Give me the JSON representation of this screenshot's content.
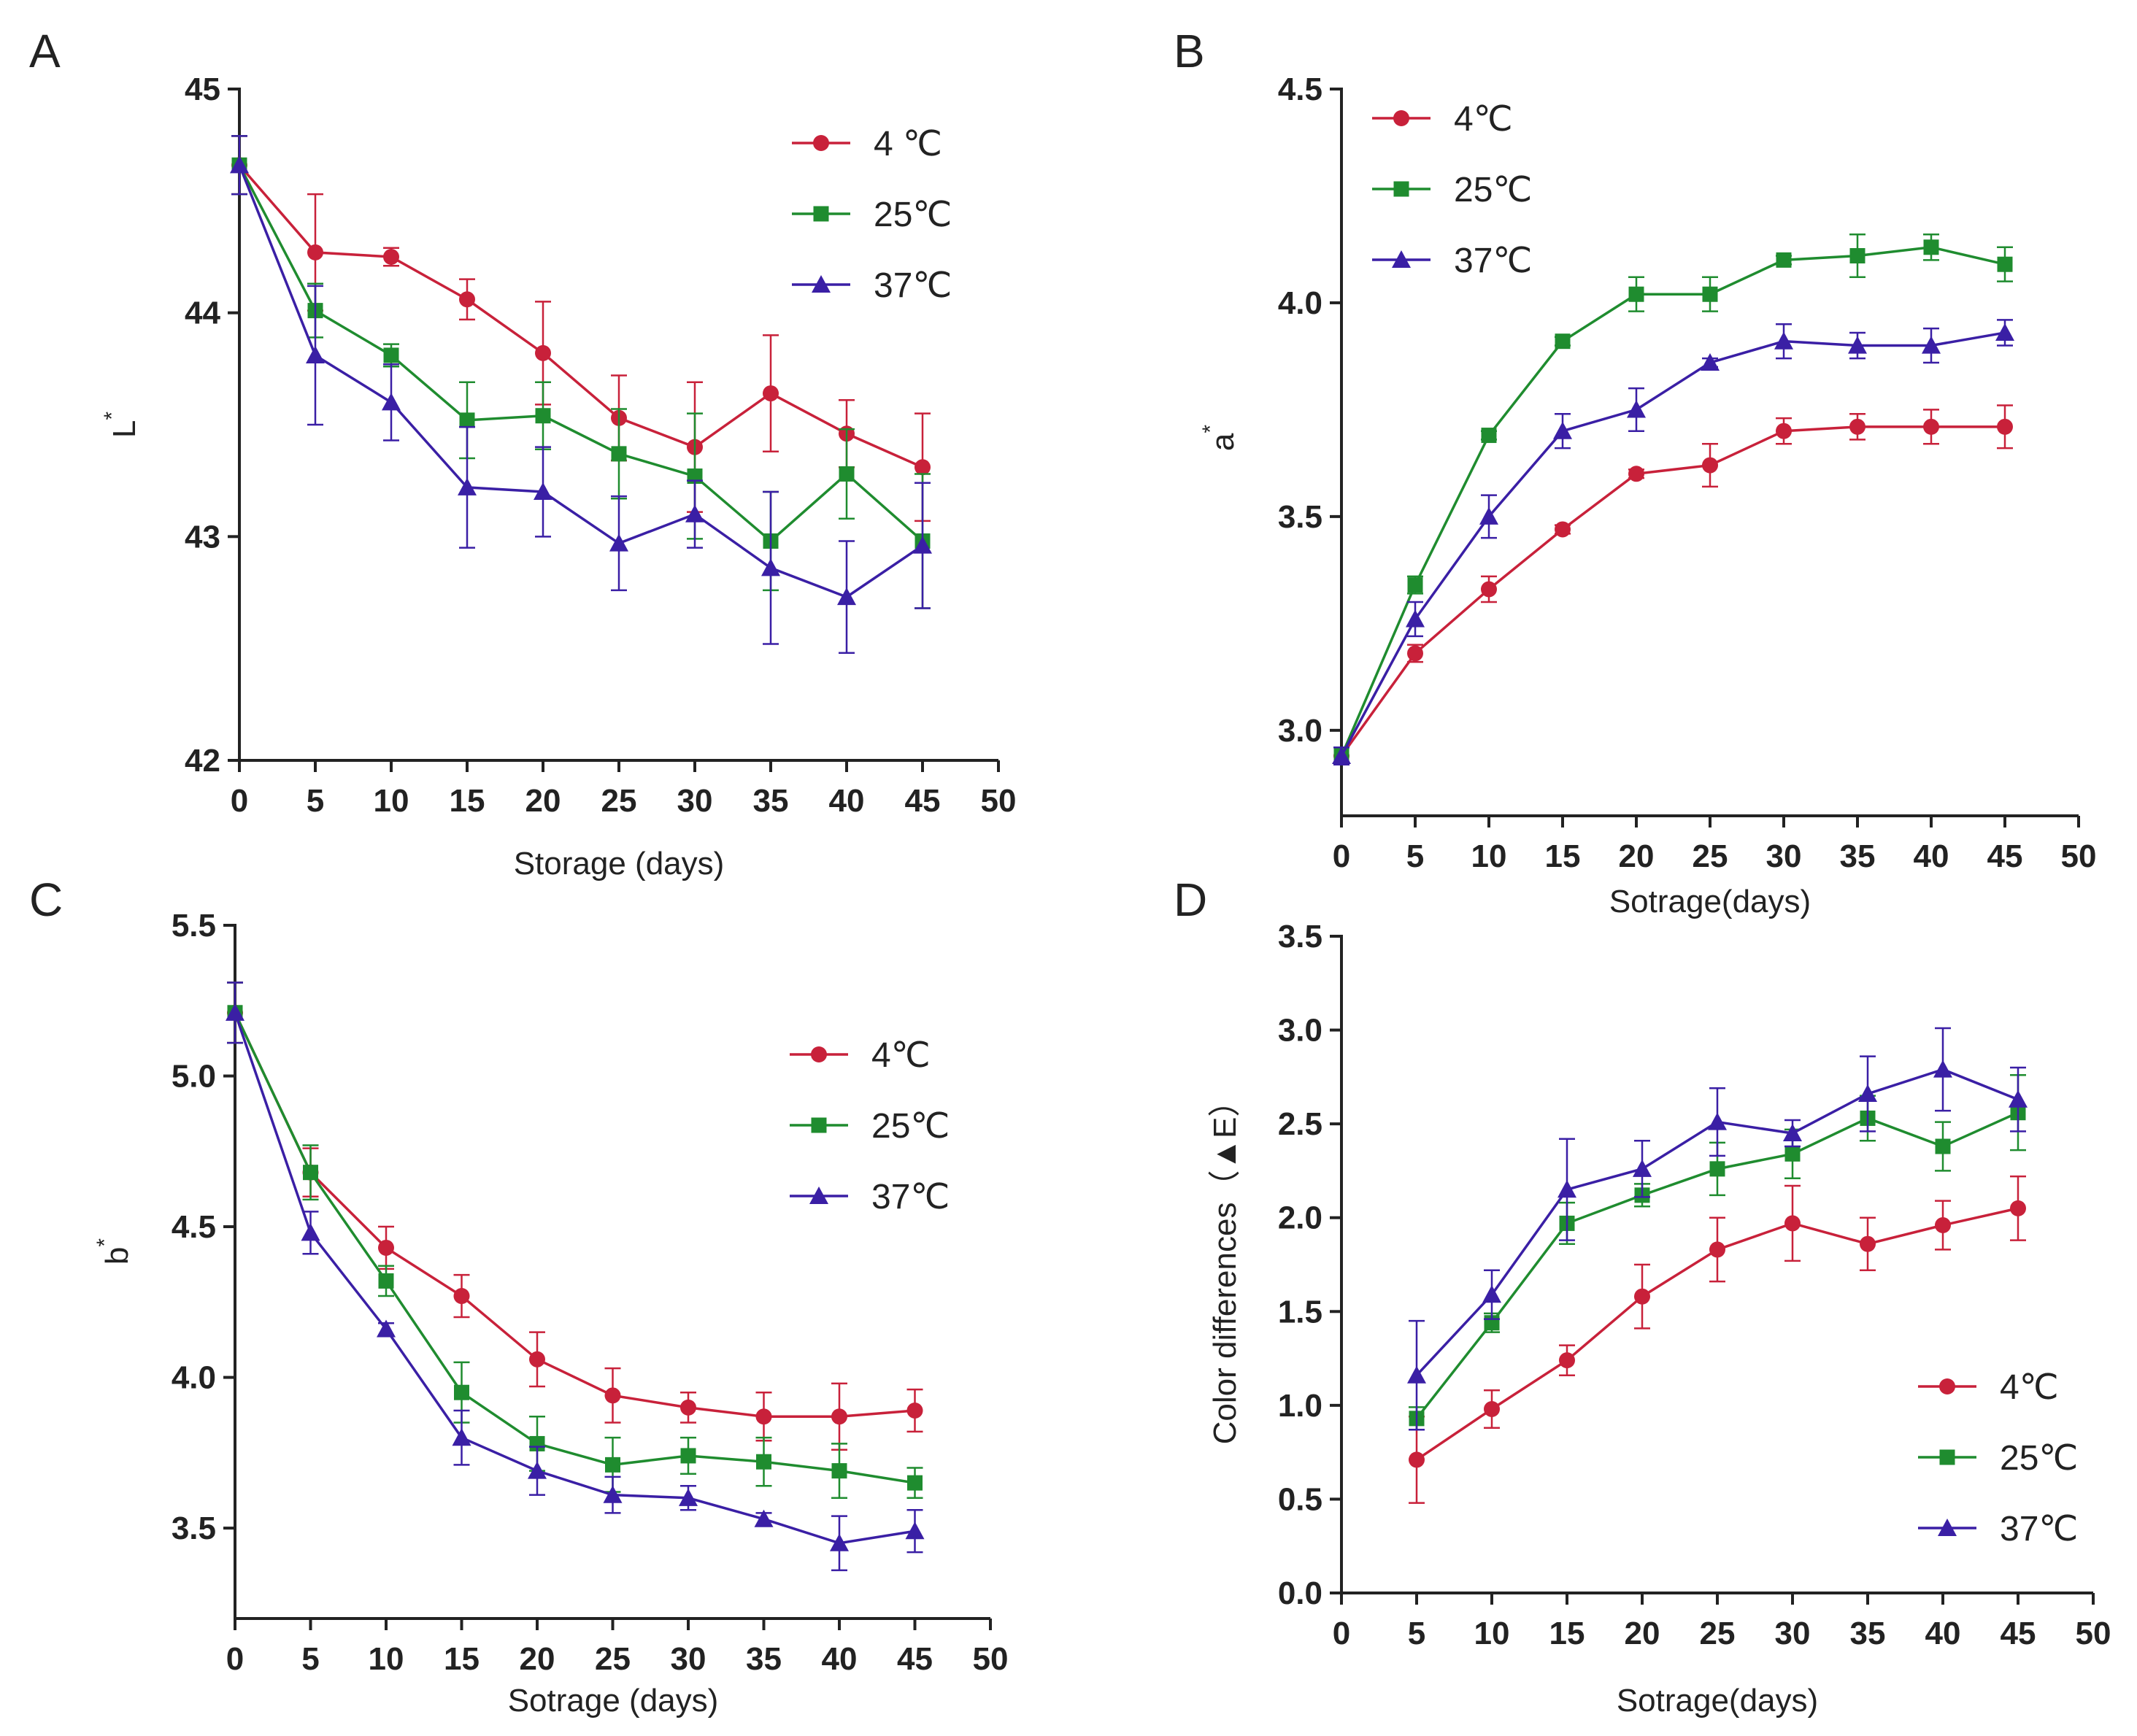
{
  "figure": {
    "colors": {
      "4C": "#c8213a",
      "25C": "#1f8c2f",
      "37C": "#3a1fa5",
      "axis": "#222222"
    }
  },
  "chart_data": [
    {
      "panel": "A",
      "type": "line",
      "xlabel": "Storage (days)",
      "ylabel": "L",
      "ylabel_sup": "*",
      "xlim": [
        0,
        50
      ],
      "ylim": [
        42,
        45
      ],
      "xticks": [
        0,
        5,
        10,
        15,
        20,
        25,
        30,
        35,
        40,
        45,
        50
      ],
      "yticks": [
        42,
        43,
        44,
        45
      ],
      "tick_decimals": 0,
      "legend_position": "top-right",
      "x": [
        0,
        5,
        10,
        15,
        20,
        25,
        30,
        35,
        40,
        45
      ],
      "series": [
        {
          "name": "4 ℃",
          "color": "#c8213a",
          "marker": "circle",
          "values": [
            44.66,
            44.27,
            44.25,
            44.06,
            43.82,
            43.53,
            43.4,
            43.64,
            43.46,
            43.31
          ],
          "errors": [
            0.13,
            0.26,
            0.04,
            0.09,
            0.23,
            0.19,
            0.29,
            0.26,
            0.15,
            0.24
          ]
        },
        {
          "name": "25℃",
          "color": "#1f8c2f",
          "marker": "square",
          "values": [
            44.66,
            44.01,
            43.81,
            43.52,
            43.54,
            43.37,
            43.27,
            42.98,
            43.28,
            42.98
          ],
          "errors": [
            0.13,
            0.12,
            0.05,
            0.17,
            0.15,
            0.2,
            0.28,
            0.22,
            0.2,
            0.3
          ]
        },
        {
          "name": "37℃",
          "color": "#3a1fa5",
          "marker": "triangle",
          "values": [
            44.66,
            43.81,
            43.6,
            43.22,
            43.2,
            42.97,
            43.1,
            42.86,
            42.73,
            42.96
          ],
          "errors": [
            0.13,
            0.31,
            0.17,
            0.27,
            0.2,
            0.21,
            0.15,
            0.34,
            0.25,
            0.28
          ]
        }
      ]
    },
    {
      "panel": "B",
      "type": "line",
      "xlabel": "Sotrage(days)",
      "ylabel": "a",
      "ylabel_sup": "*",
      "xlim": [
        0,
        50
      ],
      "ylim": [
        2.8,
        4.5
      ],
      "xticks": [
        0,
        5,
        10,
        15,
        20,
        25,
        30,
        35,
        40,
        45,
        50
      ],
      "yticks": [
        3.0,
        3.5,
        4.0,
        4.5
      ],
      "tick_decimals": 1,
      "legend_position": "top-left",
      "x": [
        0,
        5,
        10,
        15,
        20,
        25,
        30,
        35,
        40,
        45
      ],
      "series": [
        {
          "name": "4℃",
          "color": "#c8213a",
          "marker": "circle",
          "values": [
            2.94,
            3.18,
            3.33,
            3.47,
            3.6,
            3.62,
            3.7,
            3.71,
            3.71,
            3.71
          ],
          "errors": [
            0.02,
            0.02,
            0.03,
            0.01,
            0.01,
            0.05,
            0.03,
            0.03,
            0.04,
            0.05
          ]
        },
        {
          "name": "25℃",
          "color": "#1f8c2f",
          "marker": "square",
          "values": [
            2.94,
            3.34,
            3.69,
            3.91,
            4.02,
            4.02,
            4.1,
            4.11,
            4.13,
            4.09
          ],
          "errors": [
            0.02,
            0.02,
            0.01,
            0.01,
            0.04,
            0.04,
            0.01,
            0.05,
            0.03,
            0.04
          ]
        },
        {
          "name": "37℃",
          "color": "#3a1fa5",
          "marker": "triangle",
          "values": [
            2.94,
            3.26,
            3.5,
            3.7,
            3.75,
            3.86,
            3.91,
            3.9,
            3.9,
            3.93
          ],
          "errors": [
            0.02,
            0.04,
            0.05,
            0.04,
            0.05,
            0.01,
            0.04,
            0.03,
            0.04,
            0.03
          ]
        }
      ]
    },
    {
      "panel": "C",
      "type": "line",
      "xlabel": "Sotrage (days)",
      "ylabel": "b",
      "ylabel_sup": "*",
      "xlim": [
        0,
        50
      ],
      "ylim": [
        3.2,
        5.5
      ],
      "xticks": [
        0,
        5,
        10,
        15,
        20,
        25,
        30,
        35,
        40,
        45,
        50
      ],
      "yticks": [
        3.5,
        4.0,
        4.5,
        5.0,
        5.5
      ],
      "tick_decimals": 1,
      "legend_position": "right",
      "x": [
        0,
        5,
        10,
        15,
        20,
        25,
        30,
        35,
        40,
        45
      ],
      "series": [
        {
          "name": "4℃",
          "color": "#c8213a",
          "marker": "circle",
          "values": [
            5.21,
            4.68,
            4.43,
            4.27,
            4.06,
            3.94,
            3.9,
            3.87,
            3.87,
            3.89
          ],
          "errors": [
            0.1,
            0.08,
            0.07,
            0.07,
            0.09,
            0.09,
            0.05,
            0.08,
            0.11,
            0.07
          ]
        },
        {
          "name": "25℃",
          "color": "#1f8c2f",
          "marker": "square",
          "values": [
            5.21,
            4.68,
            4.32,
            3.95,
            3.78,
            3.71,
            3.74,
            3.72,
            3.69,
            3.65
          ],
          "errors": [
            0.1,
            0.09,
            0.05,
            0.1,
            0.09,
            0.09,
            0.06,
            0.08,
            0.09,
            0.05
          ]
        },
        {
          "name": "37℃",
          "color": "#3a1fa5",
          "marker": "triangle",
          "values": [
            5.21,
            4.48,
            4.16,
            3.8,
            3.69,
            3.61,
            3.6,
            3.53,
            3.45,
            3.49
          ],
          "errors": [
            0.1,
            0.07,
            0.02,
            0.09,
            0.08,
            0.06,
            0.04,
            0.02,
            0.09,
            0.07
          ]
        }
      ]
    },
    {
      "panel": "D",
      "type": "line",
      "xlabel": "Sotrage(days)",
      "ylabel": "Color differences（▲E）",
      "ylabel_sup": "",
      "xlim": [
        0,
        50
      ],
      "ylim": [
        0,
        3.5
      ],
      "xticks": [
        0,
        5,
        10,
        15,
        20,
        25,
        30,
        35,
        40,
        45,
        50
      ],
      "yticks": [
        0.0,
        0.5,
        1.0,
        1.5,
        2.0,
        2.5,
        3.0,
        3.5
      ],
      "tick_decimals": 1,
      "legend_position": "bottom-right",
      "x": [
        5,
        10,
        15,
        20,
        25,
        30,
        35,
        40,
        45
      ],
      "series": [
        {
          "name": "4℃",
          "color": "#c8213a",
          "marker": "circle",
          "values": [
            0.71,
            0.98,
            1.24,
            1.58,
            1.83,
            1.97,
            1.86,
            1.96,
            2.05
          ],
          "errors": [
            0.23,
            0.1,
            0.08,
            0.17,
            0.17,
            0.2,
            0.14,
            0.13,
            0.17
          ]
        },
        {
          "name": "25℃",
          "color": "#1f8c2f",
          "marker": "square",
          "values": [
            0.93,
            1.44,
            1.97,
            2.12,
            2.26,
            2.34,
            2.53,
            2.38,
            2.56
          ],
          "errors": [
            0.06,
            0.05,
            0.11,
            0.06,
            0.14,
            0.13,
            0.12,
            0.13,
            0.2
          ]
        },
        {
          "name": "37℃",
          "color": "#3a1fa5",
          "marker": "triangle",
          "values": [
            1.16,
            1.59,
            2.15,
            2.26,
            2.51,
            2.45,
            2.66,
            2.79,
            2.63
          ],
          "errors": [
            0.29,
            0.13,
            0.27,
            0.15,
            0.18,
            0.07,
            0.2,
            0.22,
            0.17
          ]
        }
      ]
    }
  ]
}
